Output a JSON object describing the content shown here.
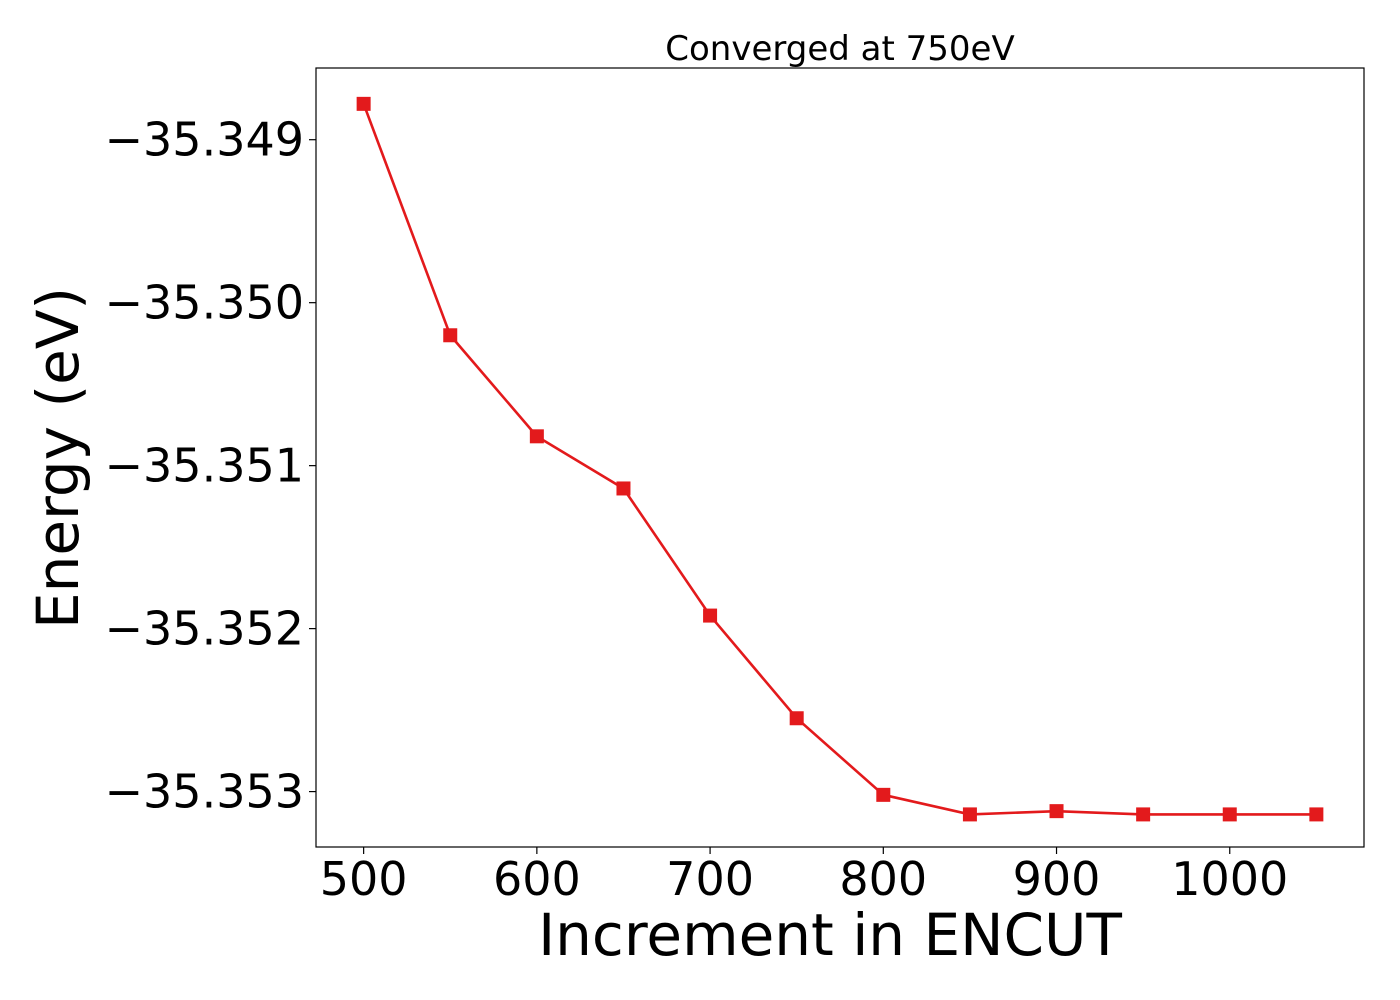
{
  "chart_data": {
    "type": "line",
    "title": "Converged at 750eV",
    "xlabel": "Increment in ENCUT",
    "ylabel": "Energy (eV)",
    "x": [
      500,
      550,
      600,
      650,
      700,
      750,
      800,
      850,
      900,
      950,
      1000,
      1050
    ],
    "series": [
      {
        "values": [
          -35.34878,
          -35.3502,
          -35.35082,
          -35.35114,
          -35.35192,
          -35.35255,
          -35.35302,
          -35.35314,
          -35.35312,
          -35.35314,
          -35.35314,
          -35.35314
        ]
      }
    ],
    "x_ticks": [
      500,
      600,
      700,
      800,
      900,
      1000
    ],
    "x_tick_labels": [
      "500",
      "600",
      "700",
      "800",
      "900",
      "1000"
    ],
    "y_ticks": [
      -35.349,
      -35.35,
      -35.351,
      -35.352,
      -35.353
    ],
    "y_tick_labels": [
      "−35.349",
      "−35.350",
      "−35.351",
      "−35.352",
      "−35.353"
    ],
    "xlim": [
      472.5,
      1077.5
    ],
    "ylim": [
      -35.35334,
      -35.34856
    ],
    "grid": false,
    "legend": "none",
    "marker": "square",
    "color": "#e31a1c"
  }
}
